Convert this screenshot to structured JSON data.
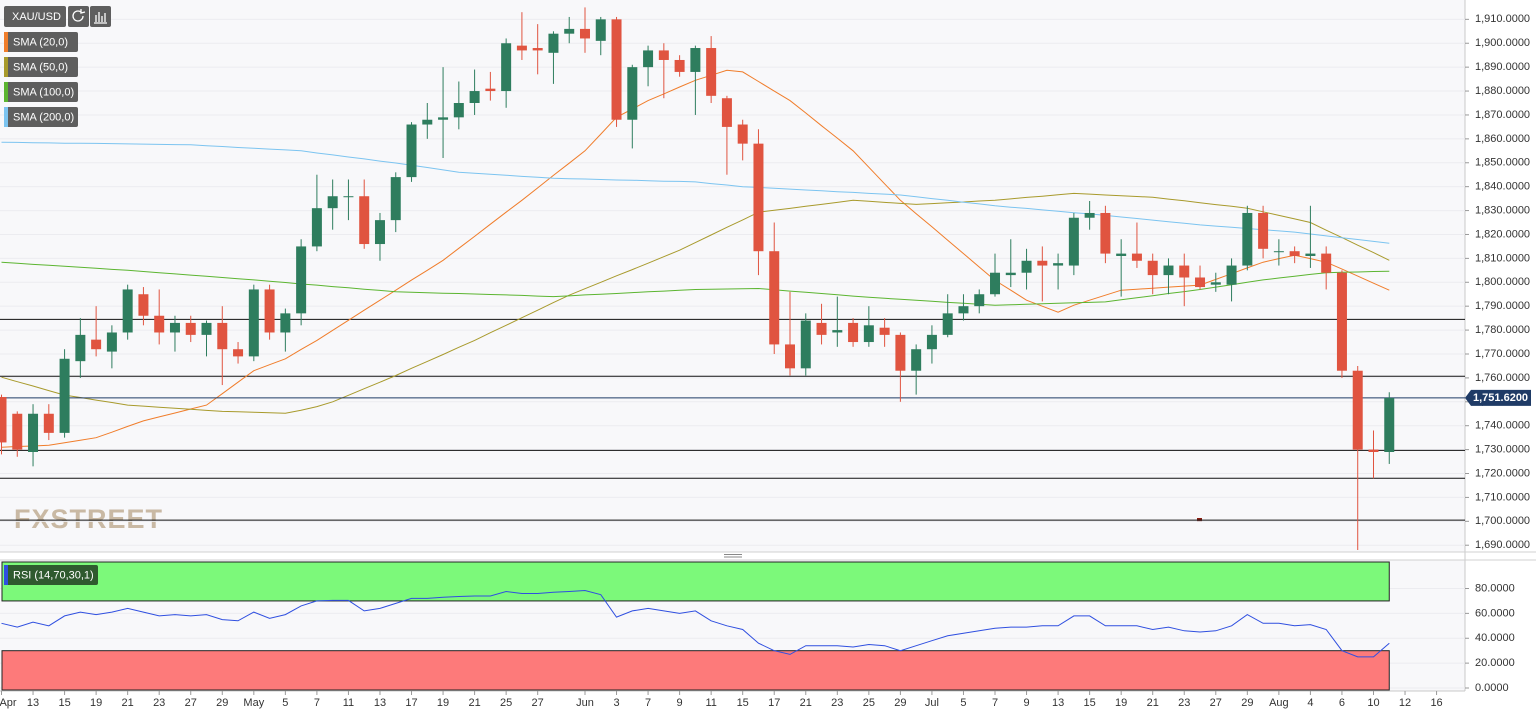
{
  "chart_data": {
    "type": "candlestick",
    "symbol": "XAU/USD",
    "watermark": "FXSTREET",
    "categories": [
      "Apr",
      null,
      "13",
      null,
      "15",
      null,
      "19",
      null,
      "21",
      null,
      "23",
      null,
      "27",
      null,
      "29",
      null,
      "May",
      null,
      "5",
      null,
      "7",
      null,
      "11",
      null,
      "13",
      null,
      "17",
      null,
      "19",
      null,
      "21",
      null,
      "25",
      null,
      "27",
      null,
      null,
      "Jun",
      null,
      "3",
      null,
      "7",
      null,
      "9",
      null,
      "11",
      null,
      "15",
      null,
      "17",
      null,
      "21",
      null,
      "23",
      null,
      "25",
      null,
      "29",
      null,
      "Jul",
      null,
      "5",
      null,
      "7",
      null,
      "9",
      null,
      "13",
      null,
      "15",
      null,
      "19",
      null,
      "21",
      null,
      "23",
      null,
      "27",
      null,
      "29",
      null,
      "Aug",
      null,
      "4",
      null,
      "6",
      null,
      "10",
      null,
      "12",
      null,
      "16",
      null
    ],
    "open": [
      1752,
      1745,
      1729,
      1745,
      1737,
      1767,
      1776,
      1771,
      1779,
      1795,
      1786,
      1779,
      1783,
      1778,
      1783,
      1772,
      1769,
      1797,
      1779,
      1787,
      1815,
      1831,
      1836,
      1836,
      1816,
      1826,
      1844,
      1866,
      1868,
      1869,
      1875,
      1881,
      1880,
      1899,
      1898,
      1896,
      1904,
      1906,
      1901,
      1910,
      1868,
      1890,
      1897,
      1893,
      1888,
      1898,
      1877,
      1866,
      1858,
      1813,
      1774,
      1764,
      1783,
      1779,
      1783,
      1775,
      1781,
      1778,
      1763,
      1772,
      1778,
      1787,
      1790,
      1795,
      1803,
      1804,
      1809,
      1807,
      1807,
      1827,
      1829,
      1811,
      1812,
      1809,
      1803,
      1807,
      1802,
      1799,
      1799,
      1807,
      1829,
      1813,
      1813,
      1811,
      1812,
      1804,
      1763,
      1730,
      1729,
      null,
      null,
      null,
      null
    ],
    "high": [
      1753,
      1746,
      1749,
      1749,
      1772,
      1785,
      1790,
      1782,
      1799,
      1798,
      1797,
      1786,
      1786,
      1784,
      1790,
      1775,
      1799,
      1799,
      1789,
      1818,
      1845,
      1843,
      1843,
      1843,
      1829,
      1846,
      1867,
      1875,
      1890,
      1884,
      1889,
      1888,
      1902,
      1913,
      1908,
      1905,
      1911,
      1915,
      1911,
      1911,
      1891,
      1899,
      1900,
      1895,
      1899,
      1903,
      1878,
      1868,
      1864,
      1825,
      1796,
      1787,
      1791,
      1794,
      1785,
      1790,
      1785,
      1779,
      1774,
      1782,
      1795,
      1795,
      1797,
      1812,
      1818,
      1814,
      1815,
      1812,
      1829,
      1834,
      1832,
      1818,
      1825,
      1812,
      1810,
      1812,
      1807,
      1804,
      1810,
      1832,
      1832,
      1818,
      1815,
      1832,
      1815,
      1805,
      1765,
      1738,
      1754,
      null,
      null,
      null,
      null
    ],
    "low": [
      1728,
      1727,
      1723,
      1734,
      1735,
      1760,
      1769,
      1764,
      1776,
      1782,
      1774,
      1771,
      1775,
      1769,
      1757,
      1766,
      1767,
      1776,
      1771,
      1782,
      1813,
      1822,
      1826,
      1814,
      1809,
      1821,
      1842,
      1860,
      1852,
      1864,
      1870,
      1876,
      1873,
      1893,
      1887,
      1883,
      1900,
      1896,
      1895,
      1865,
      1856,
      1882,
      1877,
      1886,
      1870,
      1875,
      1845,
      1851,
      1803,
      1770,
      1761,
      1761,
      1774,
      1773,
      1773,
      1773,
      1773,
      1750,
      1753,
      1766,
      1777,
      1784,
      1787,
      1794,
      1798,
      1797,
      1792,
      1797,
      1803,
      1822,
      1808,
      1794,
      1806,
      1795,
      1795,
      1790,
      1797,
      1796,
      1792,
      1805,
      1810,
      1807,
      1808,
      1806,
      1797,
      1760,
      1688,
      1718,
      1724,
      null,
      null,
      null,
      null
    ],
    "close": [
      1733,
      1730,
      1745,
      1737,
      1768,
      1778,
      1772,
      1779,
      1797,
      1786,
      1779,
      1783,
      1778,
      1783,
      1772,
      1769,
      1797,
      1779,
      1787,
      1815,
      1831,
      1836,
      1836,
      1816,
      1826,
      1844,
      1866,
      1868,
      1869,
      1875,
      1880,
      1880,
      1900,
      1897,
      1897,
      1904,
      1906,
      1902,
      1910,
      1868,
      1890,
      1897,
      1893,
      1888,
      1898,
      1878,
      1865,
      1858,
      1813,
      1774,
      1764,
      1784,
      1778,
      1780,
      1775,
      1782,
      1778,
      1763,
      1772,
      1778,
      1787,
      1790,
      1795,
      1804,
      1804,
      1809,
      1807,
      1808,
      1827,
      1829,
      1812,
      1812,
      1809,
      1803,
      1807,
      1802,
      1798,
      1800,
      1807,
      1829,
      1814,
      1813,
      1811,
      1812,
      1804,
      1763,
      1730,
      1729,
      1751.62,
      null,
      null,
      null,
      null
    ],
    "up_color": "#2e7d5e",
    "down_color": "#e05440",
    "ylim": [
      1688,
      1916
    ],
    "yticks": [
      {
        "value": 1690,
        "label": "1,690.0000"
      },
      {
        "value": 1700,
        "label": "1,700.0000"
      },
      {
        "value": 1710,
        "label": "1,710.0000"
      },
      {
        "value": 1720,
        "label": "1,720.0000"
      },
      {
        "value": 1730,
        "label": "1,730.0000"
      },
      {
        "value": 1740,
        "label": "1,740.0000"
      },
      {
        "value": 1750,
        "label": "1,750.0000"
      },
      {
        "value": 1760,
        "label": "1,760.0000"
      },
      {
        "value": 1770,
        "label": "1,770.0000"
      },
      {
        "value": 1780,
        "label": "1,780.0000"
      },
      {
        "value": 1790,
        "label": "1,790.0000"
      },
      {
        "value": 1800,
        "label": "1,800.0000"
      },
      {
        "value": 1810,
        "label": "1,810.0000"
      },
      {
        "value": 1820,
        "label": "1,820.0000"
      },
      {
        "value": 1830,
        "label": "1,830.0000"
      },
      {
        "value": 1840,
        "label": "1,840.0000"
      },
      {
        "value": 1850,
        "label": "1,850.0000"
      },
      {
        "value": 1860,
        "label": "1,860.0000"
      },
      {
        "value": 1870,
        "label": "1,870.0000"
      },
      {
        "value": 1880,
        "label": "1,880.0000"
      },
      {
        "value": 1890,
        "label": "1,890.0000"
      },
      {
        "value": 1900,
        "label": "1,900.0000"
      },
      {
        "value": 1910,
        "label": "1,910.0000"
      }
    ],
    "grid": true,
    "last_price": {
      "value": 1751.62,
      "label": "1,751.6200"
    },
    "last_price_color": "#1f3b66",
    "hlines": [
      1784.5,
      1760.7,
      1729.7,
      1718.0,
      1700.5
    ],
    "series": [
      {
        "name": "SMA (20,0)",
        "color": "#f07d2b",
        "values": [
          1731.0,
          1731.3,
          1731.5,
          1731.8,
          1732.9,
          1733.9,
          1735.0,
          1737.3,
          1739.7,
          1742.0,
          1743.7,
          1745.3,
          1747.0,
          1748.6,
          1753.4,
          1758.2,
          1763.0,
          1765.5,
          1768.0,
          1771.9,
          1775.7,
          1779.9,
          1784.1,
          1788.3,
          1792.5,
          1796.7,
          1800.9,
          1805.0,
          1809.2,
          1814.2,
          1819.2,
          1824.3,
          1829.3,
          1834.3,
          1839.5,
          1844.7,
          1849.8,
          1855.0,
          1862.0,
          1869.0,
          1872.5,
          1876.0,
          1878.8,
          1881.7,
          1884.5,
          1886.6,
          1888.7,
          1888.0,
          1884.0,
          1880.0,
          1876.0,
          1870.8,
          1865.5,
          1860.3,
          1855.0,
          1848.1,
          1841.2,
          1834.3,
          1828.7,
          1823.2,
          1817.6,
          1812.0,
          1806.4,
          1800.8,
          1796.7,
          1792.5,
          1790.0,
          1787.5,
          1790.4,
          1792.5,
          1794.6,
          1796.7,
          1797.1,
          1797.5,
          1798.0,
          1798.4,
          1798.8,
          1801.2,
          1803.6,
          1806.0,
          1808.4,
          1809.9,
          1811.3,
          1809.9,
          1808.4,
          1805.5,
          1802.6,
          1799.6,
          1796.7,
          null,
          null,
          null,
          null
        ]
      },
      {
        "name": "SMA (50,0)",
        "color": "#a89a2c",
        "values": [
          1760.3,
          1758.4,
          1756.6,
          1754.7,
          1752.8,
          1751.8,
          1750.7,
          1749.7,
          1748.6,
          1748.2,
          1747.7,
          1747.3,
          1746.9,
          1746.4,
          1746.0,
          1745.8,
          1745.6,
          1745.4,
          1745.2,
          1746.5,
          1748.0,
          1750.0,
          1752.7,
          1755.5,
          1758.2,
          1761.0,
          1764.0,
          1766.9,
          1769.8,
          1772.8,
          1775.7,
          1778.9,
          1782.0,
          1785.2,
          1788.3,
          1791.5,
          1794.6,
          1797.3,
          1800.0,
          1802.7,
          1805.3,
          1808.0,
          1810.7,
          1813.4,
          1816.6,
          1819.8,
          1823.0,
          1826.1,
          1829.3,
          1830.1,
          1830.9,
          1831.8,
          1832.6,
          1833.4,
          1834.3,
          1833.9,
          1833.4,
          1833.0,
          1832.6,
          1832.9,
          1833.3,
          1833.6,
          1834.0,
          1834.3,
          1834.9,
          1835.5,
          1836.0,
          1836.6,
          1837.2,
          1836.9,
          1836.5,
          1836.2,
          1835.9,
          1835.6,
          1834.8,
          1834.1,
          1833.3,
          1832.5,
          1831.8,
          1831.0,
          1829.5,
          1828.0,
          1826.5,
          1825.0,
          1821.8,
          1818.7,
          1815.5,
          1812.4,
          1809.2,
          null,
          null,
          null,
          null
        ]
      },
      {
        "name": "SMA (100,0)",
        "color": "#5cb531",
        "values": [
          1808.4,
          1808.0,
          1807.5,
          1807.1,
          1806.7,
          1806.3,
          1805.9,
          1805.4,
          1805.0,
          1804.5,
          1804.0,
          1803.5,
          1803.0,
          1802.5,
          1802.0,
          1801.5,
          1801.0,
          1800.4,
          1799.9,
          1799.3,
          1798.8,
          1798.2,
          1797.7,
          1797.1,
          1796.6,
          1796.0,
          1795.8,
          1795.6,
          1795.4,
          1795.3,
          1795.1,
          1794.9,
          1794.7,
          1794.5,
          1794.2,
          1794.0,
          1794.3,
          1794.7,
          1795.0,
          1795.3,
          1795.7,
          1796.0,
          1796.3,
          1796.7,
          1797.0,
          1797.1,
          1797.2,
          1797.3,
          1797.4,
          1796.9,
          1796.3,
          1795.8,
          1795.3,
          1794.8,
          1794.2,
          1793.7,
          1793.3,
          1792.9,
          1792.5,
          1792.1,
          1791.6,
          1791.2,
          1790.8,
          1790.4,
          1790.6,
          1790.8,
          1791.0,
          1791.2,
          1791.4,
          1791.6,
          1791.8,
          1792.7,
          1793.5,
          1794.4,
          1795.3,
          1796.1,
          1797.0,
          1798.0,
          1799.0,
          1800.0,
          1801.0,
          1801.8,
          1802.5,
          1803.3,
          1804.0,
          1804.2,
          1804.3,
          1804.5,
          1804.6,
          null,
          null,
          null,
          null
        ]
      },
      {
        "name": "SMA (200,0)",
        "color": "#7cc4f0",
        "values": [
          1858.6,
          1858.5,
          1858.4,
          1858.3,
          1858.2,
          1858.2,
          1858.1,
          1858.0,
          1857.9,
          1857.8,
          1857.7,
          1857.6,
          1857.5,
          1857.1,
          1856.8,
          1856.4,
          1856.1,
          1855.7,
          1855.4,
          1855.0,
          1854.1,
          1853.3,
          1852.4,
          1851.6,
          1850.7,
          1849.9,
          1849.0,
          1848.0,
          1847.0,
          1846.0,
          1845.6,
          1845.2,
          1844.8,
          1844.3,
          1843.9,
          1843.5,
          1843.3,
          1843.2,
          1843.0,
          1842.8,
          1842.7,
          1842.5,
          1842.3,
          1842.2,
          1842.0,
          1841.3,
          1840.7,
          1840.0,
          1839.7,
          1839.3,
          1839.0,
          1838.6,
          1838.3,
          1837.9,
          1837.6,
          1837.2,
          1836.9,
          1836.5,
          1835.8,
          1835.0,
          1834.3,
          1833.5,
          1832.8,
          1832.0,
          1831.4,
          1830.9,
          1830.3,
          1829.7,
          1829.1,
          1828.6,
          1828.0,
          1827.3,
          1826.7,
          1826.0,
          1825.3,
          1824.7,
          1824.0,
          1823.5,
          1823.0,
          1822.5,
          1822.0,
          1821.5,
          1821.0,
          1820.2,
          1819.4,
          1818.6,
          1817.9,
          1817.1,
          1816.3,
          null,
          null,
          null,
          null
        ]
      }
    ],
    "indicator": {
      "type": "line",
      "name": "RSI (14,70,30,1)",
      "color": "#2f4fe0",
      "values": [
        52,
        49,
        53,
        50,
        58,
        61,
        59,
        61,
        64,
        61,
        58,
        59,
        58,
        59,
        55,
        54,
        61,
        56,
        59,
        66,
        70,
        70.4,
        70.4,
        62,
        64,
        68,
        72,
        72,
        73,
        73.6,
        74,
        74,
        77.6,
        76,
        76,
        77,
        77.6,
        78.4,
        75,
        57,
        62,
        64,
        62,
        60,
        62,
        54,
        50,
        47,
        36,
        30,
        27,
        34,
        34,
        34,
        33,
        35,
        34,
        30,
        34,
        38,
        42,
        44,
        46,
        48,
        49,
        49,
        50,
        50,
        58,
        58,
        50,
        50,
        50,
        47,
        49,
        46,
        45,
        46,
        50,
        59,
        52,
        52,
        50,
        51,
        47,
        30,
        25,
        25,
        36,
        null,
        null,
        null,
        null
      ],
      "ylim": [
        -1.6,
        101.3
      ],
      "yticks": [
        {
          "value": 0,
          "label": "0.0000"
        },
        {
          "value": 20,
          "label": "20.0000"
        },
        {
          "value": 40,
          "label": "40.0000"
        },
        {
          "value": 60,
          "label": "60.0000"
        },
        {
          "value": 80,
          "label": "80.0000"
        }
      ],
      "overbought": 70,
      "oversold": 30,
      "overbought_color": "#7cf97a",
      "oversold_color": "#fd7a7a"
    }
  }
}
